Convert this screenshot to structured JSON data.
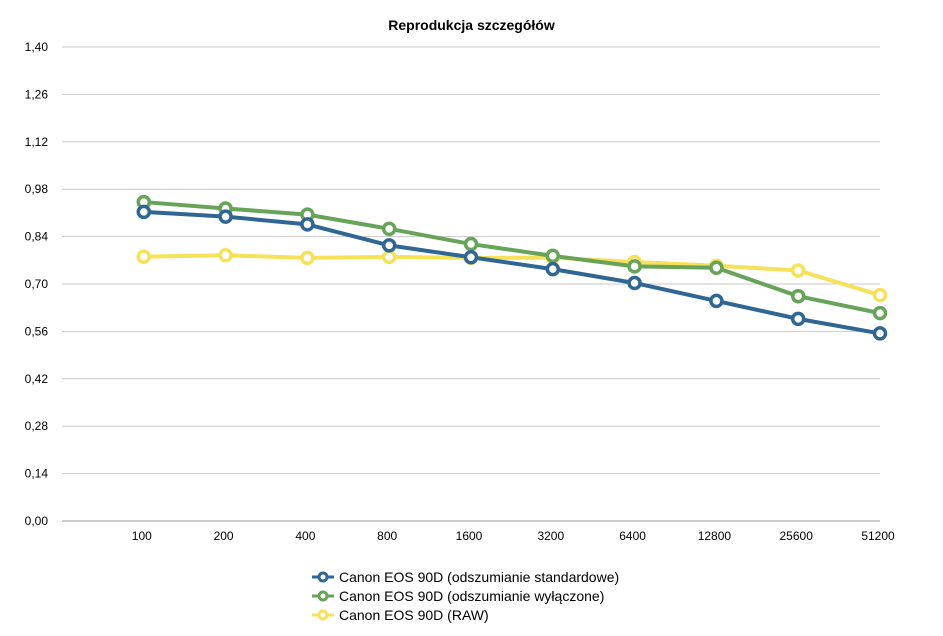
{
  "chart_data": {
    "type": "line",
    "title": "Reprodukcja szczegółów",
    "categories": [
      "100",
      "200",
      "400",
      "800",
      "1600",
      "3200",
      "6400",
      "12800",
      "25600",
      "51200"
    ],
    "y_ticks": [
      "0,00",
      "0,14",
      "0,28",
      "0,42",
      "0,56",
      "0,70",
      "0,84",
      "0,98",
      "1,12",
      "1,26",
      "1,40"
    ],
    "ylim": [
      0,
      1.4
    ],
    "grid": true,
    "legend_position": "bottom",
    "series": [
      {
        "name": "Canon EOS 90D (odszumianie standardowe)",
        "color": "#2f6694",
        "values": [
          0.913,
          0.899,
          0.876,
          0.814,
          0.779,
          0.744,
          0.703,
          0.65,
          0.597,
          0.554
        ]
      },
      {
        "name": "Canon EOS 90D (odszumianie wyłączone)",
        "color": "#67a359",
        "values": [
          0.942,
          0.923,
          0.905,
          0.863,
          0.818,
          0.783,
          0.752,
          0.748,
          0.664,
          0.614
        ]
      },
      {
        "name": "Canon EOS 90D (RAW)",
        "color": "#f7e159",
        "values": [
          0.781,
          0.785,
          0.777,
          0.78,
          0.777,
          0.778,
          0.765,
          0.754,
          0.74,
          0.667
        ]
      }
    ]
  }
}
